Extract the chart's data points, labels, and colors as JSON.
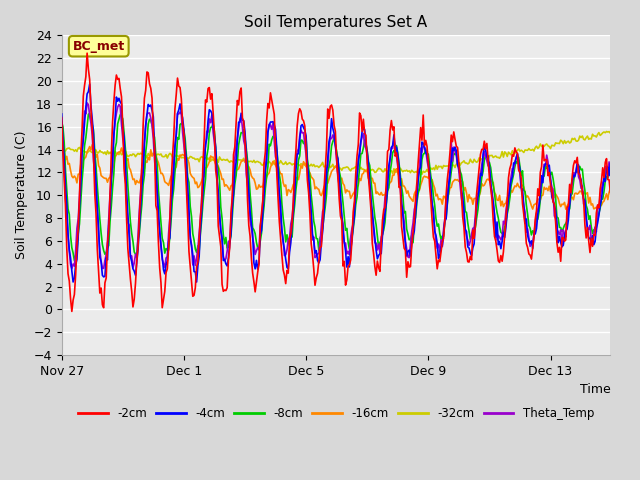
{
  "title": "Soil Temperatures Set A",
  "xlabel": "Time",
  "ylabel": "Soil Temperature (C)",
  "annotation_text": "BC_met",
  "ylim": [
    -4,
    24
  ],
  "yticks": [
    -4,
    -2,
    0,
    2,
    4,
    6,
    8,
    10,
    12,
    14,
    16,
    18,
    20,
    22,
    24
  ],
  "xtick_labels": [
    "Nov 27",
    "Dec 1",
    "Dec 5",
    "Dec 9",
    "Dec 13"
  ],
  "xtick_positions": [
    0,
    96,
    192,
    288,
    384
  ],
  "series_colors": {
    "-2cm": "#ff0000",
    "-4cm": "#0000ff",
    "-8cm": "#00cc00",
    "-16cm": "#ff8800",
    "-32cm": "#cccc00",
    "Theta_Temp": "#9900cc"
  },
  "bg_color": "#d8d8d8",
  "plot_bg_color": "#ebebeb",
  "annotation_bg": "#ffff99",
  "annotation_border": "#999900",
  "annotation_text_color": "#880000",
  "n_points": 432,
  "figsize": [
    6.4,
    4.8
  ],
  "dpi": 100
}
